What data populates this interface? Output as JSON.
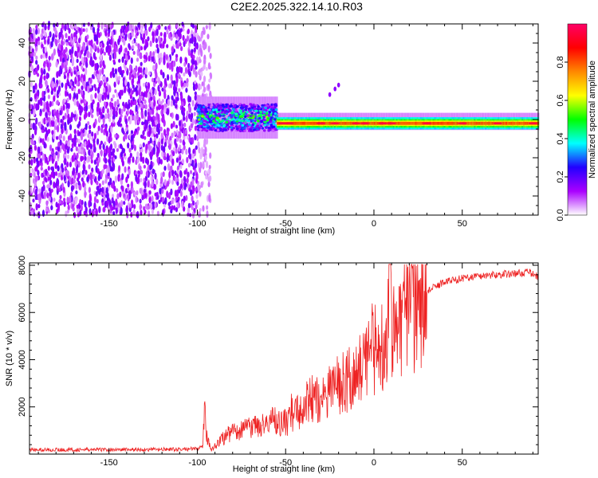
{
  "figure_title": "C2E2.2025.322.14.10.R03",
  "colors": {
    "snr_line": "#ee2222",
    "frame": "#000000",
    "background": "#ffffff"
  },
  "chart_data": [
    {
      "type": "heatmap",
      "name": "spectrogram",
      "xlabel": "Height of straight line (km)",
      "ylabel": "Frequency (Hz)",
      "xlim": [
        -195,
        93
      ],
      "ylim": [
        -50,
        50
      ],
      "xticks": [
        -150,
        -100,
        -50,
        0,
        50
      ],
      "yticks": [
        -40,
        -20,
        0,
        20,
        40
      ],
      "colorbar": {
        "label": "Normalized spectral amplitude",
        "range": [
          0.0,
          1.0
        ],
        "ticks": [
          0.0,
          0.2,
          0.4,
          0.6,
          0.8
        ],
        "tick_labels": [
          "0.0",
          "0.2",
          "0.4",
          "0.6",
          "0.8"
        ],
        "colormap": [
          "#ffffff",
          "#aa00ff",
          "#2200ff",
          "#00ffff",
          "#00ff00",
          "#ffff00",
          "#ff8800",
          "#ff0000",
          "#ff0066"
        ]
      },
      "features": [
        {
          "description": "broadband noise",
          "x_range": [
            -195,
            -100
          ],
          "freq_range": [
            -50,
            50
          ],
          "amplitude": 0.12
        },
        {
          "description": "turbulent carrier band",
          "x_range": [
            -100,
            -55
          ],
          "freq_center": 1,
          "freq_halfwidth": 7,
          "amplitude": 0.45
        },
        {
          "description": "strong carrier line",
          "x_range": [
            -55,
            93
          ],
          "freq_center": -2,
          "freq_halfwidth": 3,
          "amplitude": 0.95
        },
        {
          "description": "isolated spur",
          "x": [
            -25,
            -22,
            -20
          ],
          "freq": [
            13,
            16,
            18
          ],
          "amplitude": 0.15
        }
      ]
    },
    {
      "type": "line",
      "name": "snr",
      "xlabel": "Height of straight line (km)",
      "ylabel": "SNR (10 * v/v)",
      "xlim": [
        -195,
        93
      ],
      "ylim": [
        0,
        8100
      ],
      "xticks": [
        -150,
        -100,
        -50,
        0,
        50
      ],
      "yticks": [
        2000,
        4000,
        6000,
        8000
      ],
      "series": [
        {
          "name": "SNR",
          "x": [
            -195,
            -150,
            -110,
            -100,
            -97,
            -96,
            -95,
            -92,
            -90,
            -85,
            -80,
            -70,
            -60,
            -55,
            -50,
            -45,
            -40,
            -35,
            -30,
            -25,
            -20,
            -15,
            -10,
            -5,
            0,
            5,
            8,
            9,
            10,
            12,
            15,
            20,
            25,
            30,
            40,
            50,
            60,
            70,
            80,
            88,
            93
          ],
          "y": [
            180,
            190,
            200,
            230,
            300,
            2000,
            800,
            200,
            350,
            700,
            900,
            1100,
            1250,
            1400,
            1300,
            1800,
            1700,
            2400,
            2200,
            2700,
            2900,
            3200,
            3400,
            3700,
            4200,
            4800,
            5600,
            7500,
            5300,
            4400,
            5400,
            5700,
            6200,
            6900,
            7300,
            7450,
            7550,
            7600,
            7650,
            7700,
            7500
          ]
        }
      ]
    }
  ]
}
